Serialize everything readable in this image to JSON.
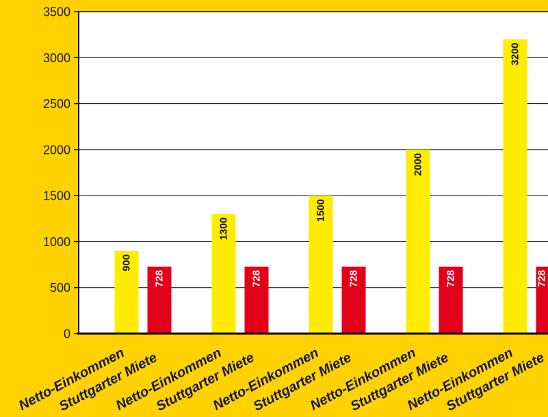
{
  "chart_data": {
    "type": "bar",
    "series": [
      {
        "name": "Netto-Einkommen",
        "color": "#FFEC00",
        "label_color": "#111111",
        "values": [
          900,
          1300,
          1500,
          2000,
          3200
        ]
      },
      {
        "name": "Stuttgarter Miete",
        "color": "#E2001A",
        "label_color": "#FFFFFF",
        "values": [
          728,
          728,
          728,
          728,
          728
        ]
      }
    ],
    "ylim": [
      0,
      3500
    ],
    "yticks": [
      0,
      500,
      1000,
      1500,
      2000,
      2500,
      3000,
      3500
    ],
    "grid": true,
    "data_labels": true,
    "legend": "none"
  },
  "colors": {
    "background": "#FFD200",
    "plot_background": "#FFFFFF",
    "axis": "#000000",
    "label_text": "#16163A",
    "tick_text": "#1A1A2E"
  }
}
